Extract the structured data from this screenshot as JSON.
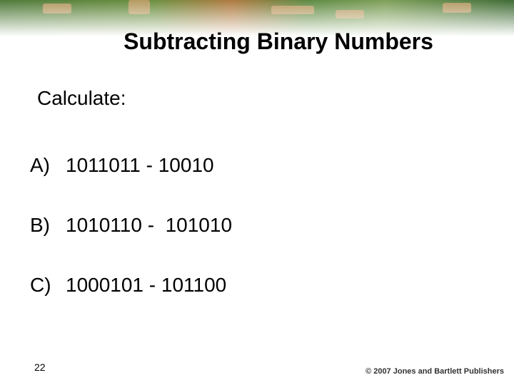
{
  "title": "Subtracting Binary Numbers",
  "instruction": "Calculate:",
  "items": [
    {
      "label": "A)",
      "expression": "1011011 - 10010"
    },
    {
      "label": "B)",
      "expression": "1010110 -  101010"
    },
    {
      "label": "C)",
      "expression": "1000101 - 101100"
    }
  ],
  "page_number": "22",
  "footer": "© 2007 Jones and Bartlett Publishers"
}
